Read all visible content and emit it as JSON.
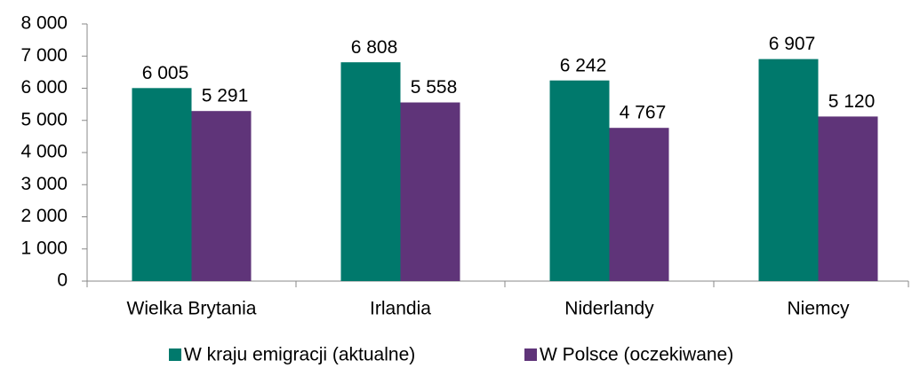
{
  "chart_data": {
    "type": "bar",
    "categories": [
      "Wielka Brytania",
      "Irlandia",
      "Niderlandy",
      "Niemcy"
    ],
    "series": [
      {
        "name": "W kraju emigracji (aktualne)",
        "color": "#00796c",
        "values": [
          6005,
          6808,
          6242,
          6907
        ],
        "value_labels": [
          "6 005",
          "6 808",
          "6 242",
          "6 907"
        ]
      },
      {
        "name": "W Polsce (oczekiwane)",
        "color": "#5f3479",
        "values": [
          5291,
          5558,
          4767,
          5120
        ],
        "value_labels": [
          "5 291",
          "5 558",
          "4 767",
          "5 120"
        ]
      }
    ],
    "ylim": [
      0,
      8000
    ],
    "yticks": [
      {
        "value": 0,
        "label": "0"
      },
      {
        "value": 1000,
        "label": "1 000"
      },
      {
        "value": 2000,
        "label": "2 000"
      },
      {
        "value": 3000,
        "label": "3 000"
      },
      {
        "value": 4000,
        "label": "4 000"
      },
      {
        "value": 5000,
        "label": "5 000"
      },
      {
        "value": 6000,
        "label": "6 000"
      },
      {
        "value": 7000,
        "label": "7 000"
      },
      {
        "value": 8000,
        "label": "8 000"
      }
    ],
    "grid": false,
    "legend": "bottom"
  }
}
